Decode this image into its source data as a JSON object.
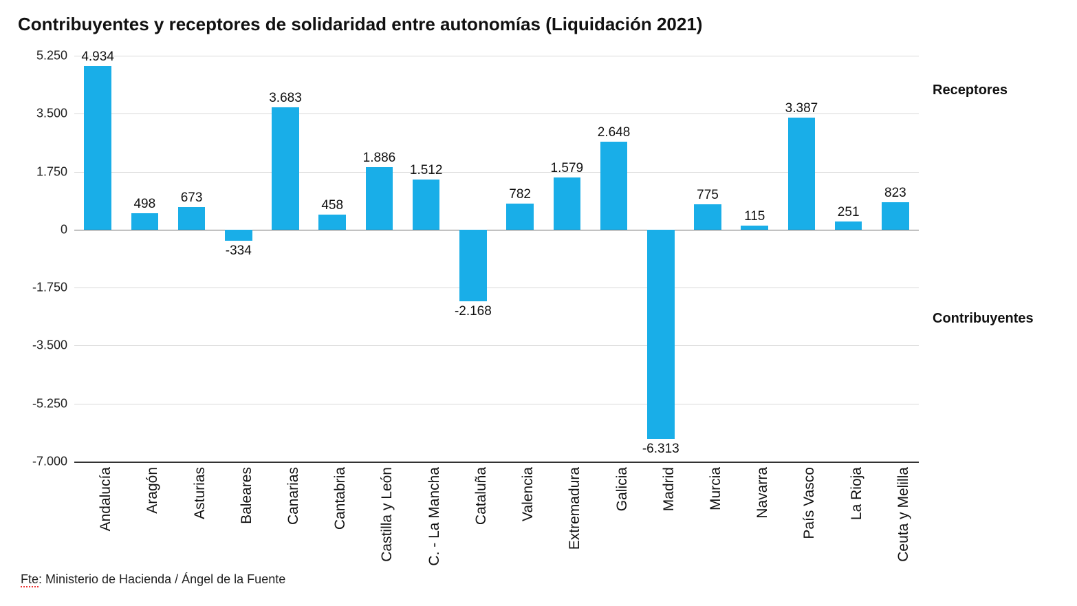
{
  "title": "Contribuyentes y receptores de solidaridad entre autonomías (Liquidación  2021)",
  "source_prefix": "Fte",
  "source_rest": ": Ministerio de Hacienda / Ángel de la Fuente",
  "annotations": {
    "top": "Receptores",
    "bottom": "Contribuyentes",
    "top_value": 4200,
    "bottom_value": -2700
  },
  "chart": {
    "type": "bar",
    "bar_color": "#19aee8",
    "grid_color": "#d9d9d9",
    "axis_color": "#333333",
    "background_color": "#ffffff",
    "ylim": [
      -7000,
      5250
    ],
    "yticks": [
      -7000,
      -5250,
      -3500,
      -1750,
      0,
      1750,
      3500,
      5250
    ],
    "ytick_labels": [
      "-7.000",
      "-5.250",
      "-3.500",
      "-1.750",
      "0",
      "1.750",
      "3.500",
      "5.250"
    ],
    "bar_width": 0.58,
    "label_fontsize": 19,
    "tick_fontsize": 18,
    "title_fontsize": 26,
    "categories": [
      "Andalucía",
      "Aragón",
      "Asturias",
      "Baleares",
      "Canarias",
      "Cantabria",
      "Castilla y León",
      "C. - La Mancha",
      "Cataluña",
      "Valencia",
      "Extremadura",
      "Galicia",
      "Madrid",
      "Murcia",
      "Navarra",
      "País Vasco",
      "La Rioja",
      "Ceuta y Melilla"
    ],
    "values": [
      4934,
      498,
      673,
      -334,
      3683,
      458,
      1886,
      1512,
      -2168,
      782,
      1579,
      2648,
      -6313,
      775,
      115,
      3387,
      251,
      823
    ],
    "value_labels": [
      "4.934",
      "498",
      "673",
      "-334",
      "3.683",
      "458",
      "1.886",
      "1.512",
      "-2.168",
      "782",
      "1.579",
      "2.648",
      "-6.313",
      "775",
      "115",
      "3.387",
      "251",
      "823"
    ]
  }
}
